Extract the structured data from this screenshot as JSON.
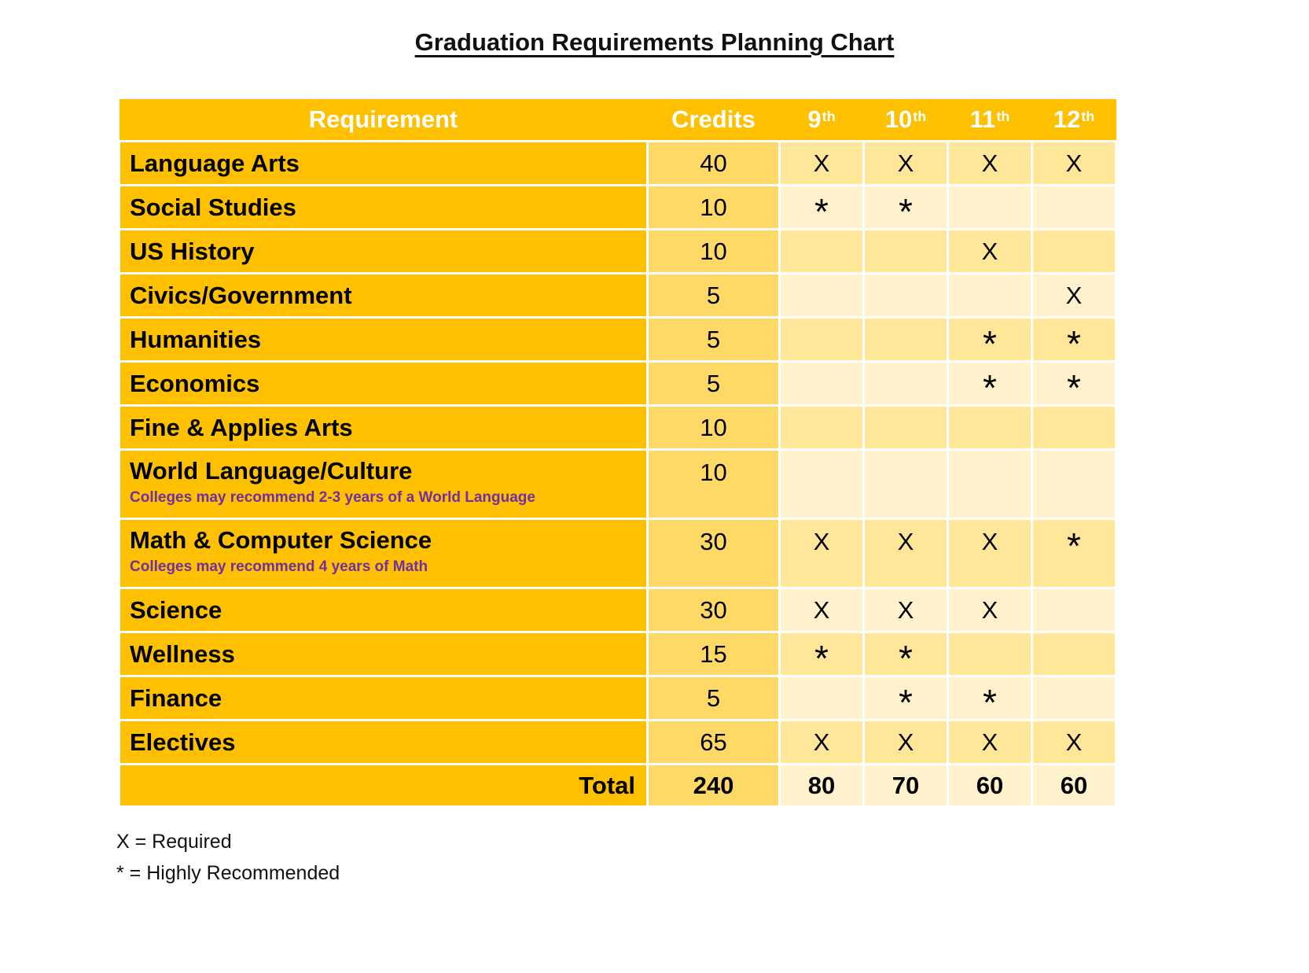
{
  "title": "Graduation Requirements Planning Chart",
  "table": {
    "header": {
      "requirement": "Requirement",
      "credits": "Credits",
      "grades": [
        {
          "num": "9",
          "sup": "th"
        },
        {
          "num": "10",
          "sup": "th"
        },
        {
          "num": "11",
          "sup": "th"
        },
        {
          "num": "12",
          "sup": "th"
        }
      ]
    },
    "rows": [
      {
        "label": "Language Arts",
        "credits": "40",
        "marks": [
          "X",
          "X",
          "X",
          "X"
        ],
        "shade": "medium"
      },
      {
        "label": "Social Studies",
        "credits": "10",
        "marks": [
          "*",
          "*",
          "",
          ""
        ],
        "shade": "light"
      },
      {
        "label": "US History",
        "credits": "10",
        "marks": [
          "",
          "",
          "X",
          ""
        ],
        "shade": "medium"
      },
      {
        "label": "Civics/Government",
        "credits": "5",
        "marks": [
          "",
          "",
          "",
          "X"
        ],
        "shade": "light"
      },
      {
        "label": "Humanities",
        "credits": "5",
        "marks": [
          "",
          "",
          "*",
          "*"
        ],
        "shade": "medium"
      },
      {
        "label": "Economics",
        "credits": "5",
        "marks": [
          "",
          "",
          "*",
          "*"
        ],
        "shade": "light"
      },
      {
        "label": "Fine & Applies Arts",
        "credits": "10",
        "marks": [
          "",
          "",
          "",
          ""
        ],
        "shade": "medium"
      },
      {
        "label": "World Language/Culture",
        "note": "Colleges may recommend 2-3 years of a World Language",
        "credits": "10",
        "marks": [
          "",
          "",
          "",
          ""
        ],
        "shade": "light"
      },
      {
        "label": "Math & Computer Science",
        "note": "Colleges may recommend 4 years of Math",
        "credits": "30",
        "marks": [
          "X",
          "X",
          "X",
          "*"
        ],
        "shade": "medium"
      },
      {
        "label": "Science",
        "credits": "30",
        "marks": [
          "X",
          "X",
          "X",
          ""
        ],
        "shade": "light"
      },
      {
        "label": "Wellness",
        "credits": "15",
        "marks": [
          "*",
          "*",
          "",
          ""
        ],
        "shade": "medium"
      },
      {
        "label": "Finance",
        "credits": "5",
        "marks": [
          "",
          "*",
          "*",
          ""
        ],
        "shade": "light"
      },
      {
        "label": "Electives",
        "credits": "65",
        "marks": [
          "X",
          "X",
          "X",
          "X"
        ],
        "shade": "medium"
      },
      {
        "label": "Total",
        "credits": "240",
        "marks": [
          "80",
          "70",
          "60",
          "60"
        ],
        "shade": "light",
        "total": true
      }
    ]
  },
  "legend": {
    "lines": [
      "X = Required",
      "* = Highly Recommended"
    ]
  },
  "colors": {
    "strong": "#FFC000",
    "credits": "#FFD966",
    "medium": "#FFE699",
    "light": "#FFF2CC",
    "note": "#7030A0",
    "header_text": "#FFFFFF",
    "body_text": "#000000"
  }
}
